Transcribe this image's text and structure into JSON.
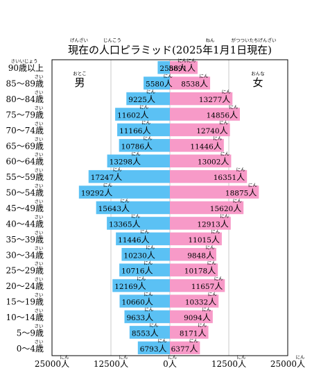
{
  "chart_data": {
    "type": "bar",
    "orientation": "horizontal",
    "layout": "population-pyramid",
    "title": "現在の人口ピラミッド(2025年1月1日現在)",
    "title_ruby": [
      {
        "reading": "げんざい",
        "base": "現在"
      },
      {
        "reading": "じんこう",
        "base": "人口"
      },
      {
        "reading": "ねん",
        "base": "年"
      },
      {
        "reading": "がつついたちげんざい",
        "base": "月1日現在"
      }
    ],
    "categories": [
      "90歳以上",
      "85～89歳",
      "80～84歳",
      "75～79歳",
      "70～74歳",
      "65～69歳",
      "60～64歳",
      "55～59歳",
      "50～54歳",
      "45～49歳",
      "40～44歳",
      "35～39歳",
      "30～34歳",
      "25～29歳",
      "20～24歳",
      "15～19歳",
      "10～14歳",
      "5～9歳",
      "0～4歳"
    ],
    "category_ruby_top": "さいいじょう",
    "category_ruby": "さい",
    "unit": "人",
    "unit_ruby": "にん",
    "series": [
      {
        "name": "男",
        "ruby": "おとこ",
        "side": "left",
        "color": "#5bc1f4",
        "values": [
          2586,
          5580,
          9225,
          11602,
          11166,
          10786,
          13298,
          17247,
          19292,
          15643,
          13365,
          11446,
          10230,
          10716,
          12169,
          10660,
          9633,
          8553,
          6793
        ]
      },
      {
        "name": "女",
        "ruby": "おんな",
        "side": "right",
        "color": "#f79ac8",
        "values": [
          5891,
          8538,
          13277,
          14856,
          12740,
          11446,
          13002,
          16351,
          18875,
          15620,
          12913,
          11015,
          9848,
          10178,
          11657,
          10332,
          9094,
          8171,
          6377
        ]
      }
    ],
    "xlim": [
      -25000,
      25000
    ],
    "x_ticks": [
      -25000,
      -12500,
      0,
      12500,
      25000
    ],
    "x_tick_labels": [
      "25000",
      "12500",
      "0",
      "12500",
      "25000"
    ],
    "grid": "vertical"
  }
}
